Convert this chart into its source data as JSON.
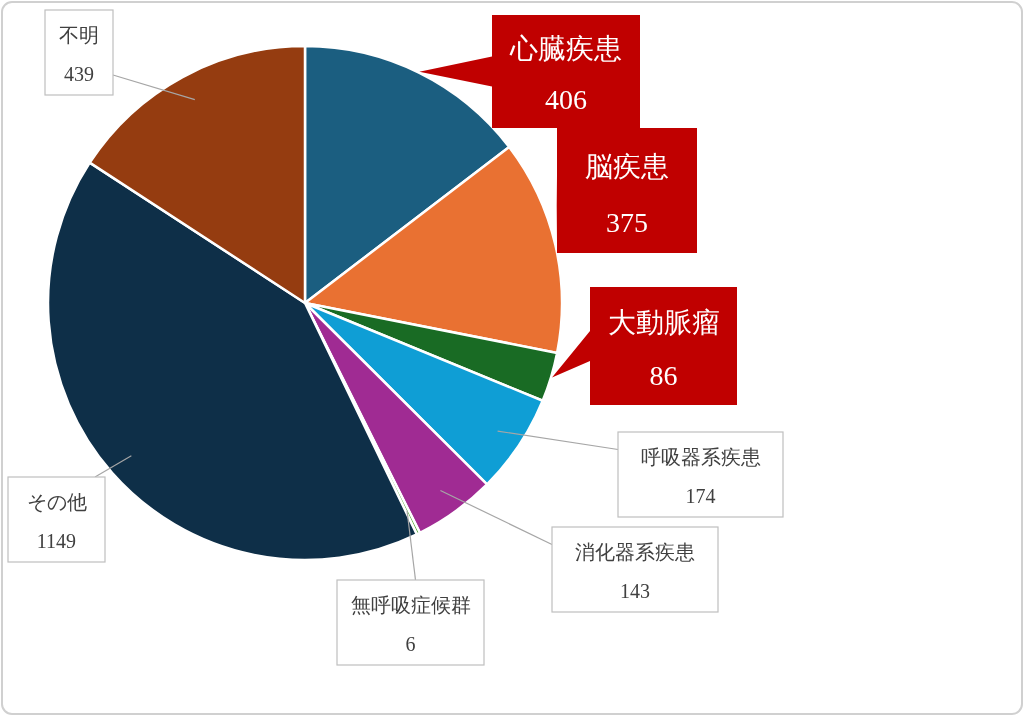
{
  "chart_data": {
    "type": "pie",
    "data_labels": true,
    "categories": [
      "心臓疾患",
      "脳疾患",
      "大動脈瘤",
      "呼吸器系疾患",
      "消化器系疾患",
      "無呼吸症候群",
      "その他",
      "不明"
    ],
    "values": [
      406,
      375,
      86,
      174,
      143,
      6,
      1149,
      439
    ],
    "colors": [
      "#1b5e80",
      "#e97132",
      "#196b24",
      "#0f9ed5",
      "#a02b93",
      "#4ea72e",
      "#0e2f48",
      "#953c10"
    ]
  }
}
